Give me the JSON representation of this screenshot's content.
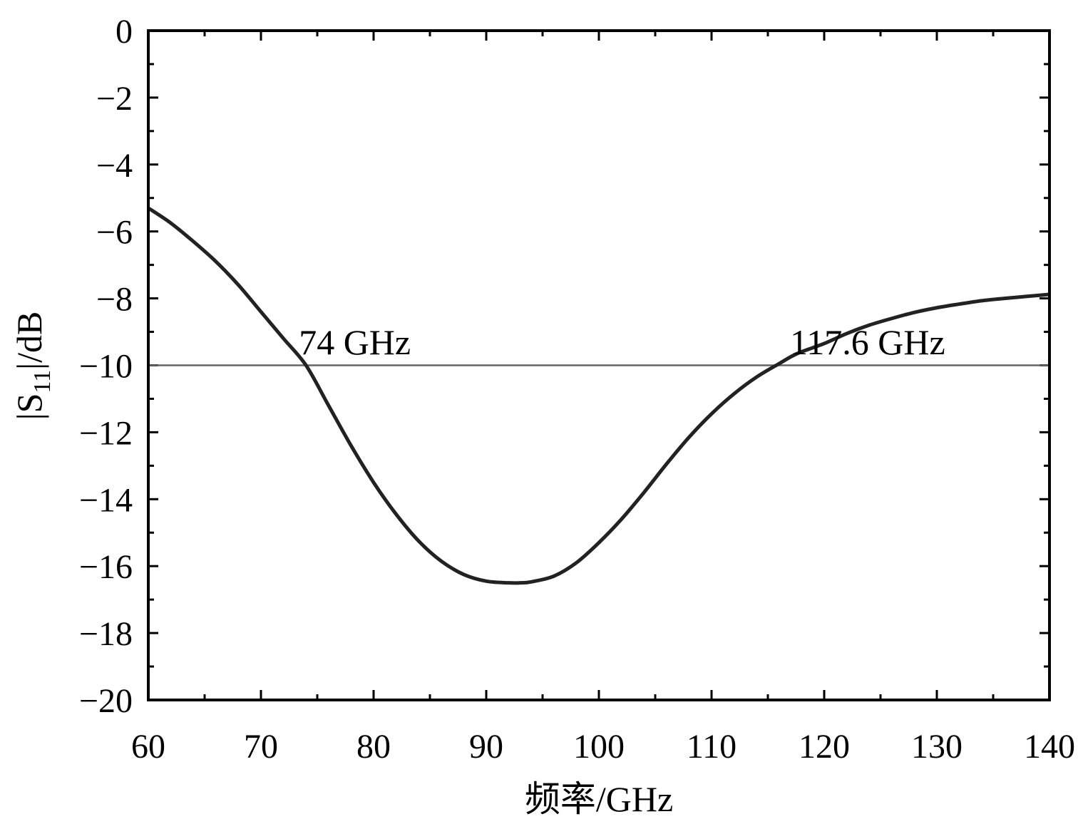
{
  "chart_data": {
    "type": "line",
    "xlabel": "频率/GHz",
    "ylabel_main": "|S",
    "ylabel_sub": "11",
    "ylabel_tail": "|/dB",
    "xlim": [
      60,
      140
    ],
    "ylim": [
      -20,
      0
    ],
    "x_ticks": [
      60,
      70,
      80,
      90,
      100,
      110,
      120,
      130,
      140
    ],
    "x_tick_labels": [
      "60",
      "70",
      "80",
      "90",
      "100",
      "110",
      "120",
      "130",
      "140"
    ],
    "y_ticks": [
      0,
      -2,
      -4,
      -6,
      -8,
      -10,
      -12,
      -14,
      -16,
      -18,
      -20
    ],
    "y_tick_labels": [
      "0",
      "−2",
      "−4",
      "−6",
      "−8",
      "−10",
      "−12",
      "−14",
      "−16",
      "−18",
      "−20"
    ],
    "grid": false,
    "series": [
      {
        "color": "#222222",
        "x": [
          60,
          62,
          64,
          66,
          68,
          70,
          72,
          74,
          76,
          78,
          80,
          82,
          84,
          86,
          88,
          90,
          92,
          93,
          94,
          96,
          98,
          100,
          102,
          104,
          106,
          108,
          110,
          112,
          114,
          116,
          117.6,
          120,
          122,
          124,
          126,
          128,
          130,
          132,
          134,
          136,
          138,
          140
        ],
        "y": [
          -5.3,
          -5.75,
          -6.3,
          -6.9,
          -7.6,
          -8.4,
          -9.2,
          -10.0,
          -11.2,
          -12.4,
          -13.5,
          -14.45,
          -15.25,
          -15.85,
          -16.25,
          -16.45,
          -16.5,
          -16.5,
          -16.47,
          -16.3,
          -15.9,
          -15.3,
          -14.6,
          -13.8,
          -12.95,
          -12.15,
          -11.45,
          -10.85,
          -10.35,
          -9.95,
          -9.65,
          -9.35,
          -9.05,
          -8.8,
          -8.6,
          -8.42,
          -8.28,
          -8.17,
          -8.07,
          -8.0,
          -7.94,
          -7.88
        ]
      }
    ],
    "reference_line": {
      "y": -10,
      "color": "#666666"
    },
    "annotations": [
      {
        "text": "74 GHz",
        "x": 74,
        "y": -9.2
      },
      {
        "text": "117.6 GHz",
        "x": 117.6,
        "y": -9.2
      }
    ]
  }
}
